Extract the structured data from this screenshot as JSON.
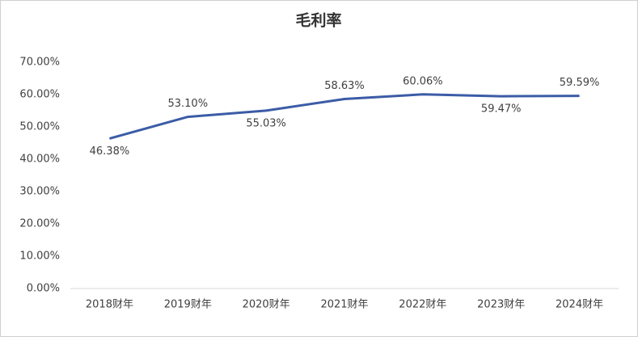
{
  "chart_data": {
    "type": "line",
    "title": "毛利率",
    "categories": [
      "2018财年",
      "2019财年",
      "2020财年",
      "2021财年",
      "2022财年",
      "2023财年",
      "2024财年"
    ],
    "series": [
      {
        "name": "毛利率",
        "color": "#3b5ca6",
        "values": [
          46.38,
          53.1,
          55.03,
          58.63,
          60.06,
          59.47,
          59.59
        ],
        "value_labels": [
          "46.38%",
          "53.10%",
          "55.03%",
          "58.63%",
          "60.06%",
          "59.47%",
          "59.59%"
        ]
      }
    ],
    "ylim": [
      0,
      70
    ],
    "yticks": [
      {
        "value": 0,
        "label": "0.00%"
      },
      {
        "value": 10,
        "label": "10.00%"
      },
      {
        "value": 20,
        "label": "20.00%"
      },
      {
        "value": 30,
        "label": "30.00%"
      },
      {
        "value": 40,
        "label": "40.00%"
      },
      {
        "value": 50,
        "label": "50.00%"
      },
      {
        "value": 60,
        "label": "60.00%"
      },
      {
        "value": 70,
        "label": "70.00%"
      }
    ],
    "grid": false
  }
}
